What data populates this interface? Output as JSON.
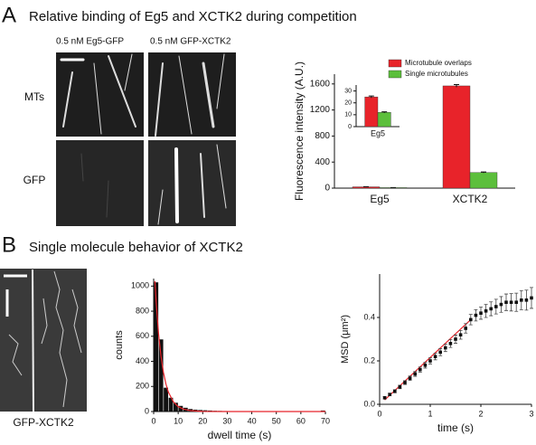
{
  "panels": [
    {
      "label": "A",
      "title": "Relative binding of Eg5 and XCTK2 during competition"
    },
    {
      "label": "B",
      "title": "Single molecule behavior of XCTK2"
    }
  ],
  "images": {
    "columns": [
      "0.5 nM Eg5-GFP",
      "0.5 nM GFP-XCTK2"
    ],
    "rows": [
      "MTs",
      "GFP"
    ],
    "kymograph_label": "GFP-XCTK2"
  },
  "chart_data": [
    {
      "type": "bar",
      "y_label": "Fluorescence intensity (A.U.)",
      "categories": [
        "Eg5",
        "XCTK2"
      ],
      "series": [
        {
          "name": "Microtubule overlaps",
          "color": "#e8232a",
          "values": [
            20,
            1570
          ],
          "errors": [
            3,
            20
          ]
        },
        {
          "name": "Single microtubules",
          "color": "#5cbf3c",
          "values": [
            8,
            240
          ],
          "errors": [
            1,
            8
          ]
        }
      ],
      "ylim": [
        0,
        1750
      ],
      "yticks": [
        0,
        400,
        800,
        1200,
        1600
      ],
      "legend": "upper right"
    },
    {
      "type": "bar",
      "categories": [
        "Eg5"
      ],
      "series": [
        {
          "color": "#e8232a",
          "values": [
            25
          ],
          "errors": [
            0.8
          ]
        },
        {
          "color": "#5cbf3c",
          "values": [
            12
          ],
          "errors": [
            0.5
          ]
        }
      ],
      "ylim": [
        0,
        35
      ],
      "yticks": [
        0,
        10,
        20,
        30
      ]
    },
    {
      "type": "histogram",
      "x_label": "dwell time (s)",
      "y_label": "counts",
      "bins": [
        0,
        2,
        4,
        6,
        8,
        10,
        12,
        14,
        16,
        18,
        20,
        22,
        24,
        26,
        28,
        30,
        32,
        34,
        36,
        38,
        40,
        42,
        44,
        46,
        48,
        50,
        52,
        54,
        56,
        58,
        60,
        62,
        64,
        66,
        68,
        70
      ],
      "counts": [
        1030,
        575,
        190,
        110,
        70,
        45,
        30,
        20,
        15,
        12,
        10,
        8,
        6,
        5,
        4,
        3,
        3,
        2,
        2,
        2,
        1,
        1,
        1,
        1,
        1,
        1,
        0,
        0,
        0,
        0,
        0,
        0,
        0,
        0,
        8
      ],
      "color": "#111111",
      "fit": {
        "color": "#e8232a",
        "x": [
          0.5,
          1,
          2,
          3,
          4,
          5,
          6,
          8,
          10,
          12,
          15,
          20,
          30,
          70
        ],
        "values": [
          1040,
          880,
          620,
          440,
          310,
          220,
          155,
          78,
          39,
          20,
          7,
          1,
          0,
          0
        ]
      },
      "xlim": [
        0,
        70
      ],
      "xticks": [
        0,
        10,
        20,
        30,
        40,
        50,
        60,
        70
      ],
      "ylim": [
        0,
        1060
      ],
      "yticks": [
        0,
        200,
        400,
        600,
        800,
        1000
      ]
    },
    {
      "type": "scatter",
      "x_label": "time (s)",
      "y_label": "MSD (μm²)",
      "series": [
        {
          "color": "#111111",
          "x": [
            0.1,
            0.2,
            0.3,
            0.4,
            0.5,
            0.6,
            0.7,
            0.8,
            0.9,
            1.0,
            1.1,
            1.2,
            1.3,
            1.4,
            1.5,
            1.6,
            1.7,
            1.8,
            1.9,
            2.0,
            2.1,
            2.2,
            2.3,
            2.4,
            2.5,
            2.6,
            2.7,
            2.8,
            2.9,
            3.0
          ],
          "values": [
            0.03,
            0.045,
            0.06,
            0.08,
            0.1,
            0.12,
            0.14,
            0.16,
            0.18,
            0.2,
            0.22,
            0.24,
            0.26,
            0.28,
            0.3,
            0.32,
            0.35,
            0.39,
            0.41,
            0.42,
            0.43,
            0.44,
            0.45,
            0.46,
            0.47,
            0.47,
            0.47,
            0.48,
            0.48,
            0.49
          ],
          "errors": [
            0.005,
            0.006,
            0.007,
            0.008,
            0.009,
            0.01,
            0.011,
            0.012,
            0.013,
            0.014,
            0.015,
            0.016,
            0.017,
            0.018,
            0.019,
            0.02,
            0.022,
            0.024,
            0.026,
            0.028,
            0.03,
            0.032,
            0.034,
            0.036,
            0.038,
            0.04,
            0.042,
            0.044,
            0.046,
            0.048
          ]
        }
      ],
      "fit": {
        "color": "#e8232a",
        "x": [
          0.1,
          1.8
        ],
        "values": [
          0.02,
          0.39
        ]
      },
      "xlim": [
        0,
        3
      ],
      "xticks": [
        0,
        1,
        2,
        3
      ],
      "ylim": [
        0,
        0.6
      ],
      "yticks": [
        {
          "value": 0,
          "label": "0.0"
        },
        0.2,
        0.4
      ]
    }
  ]
}
